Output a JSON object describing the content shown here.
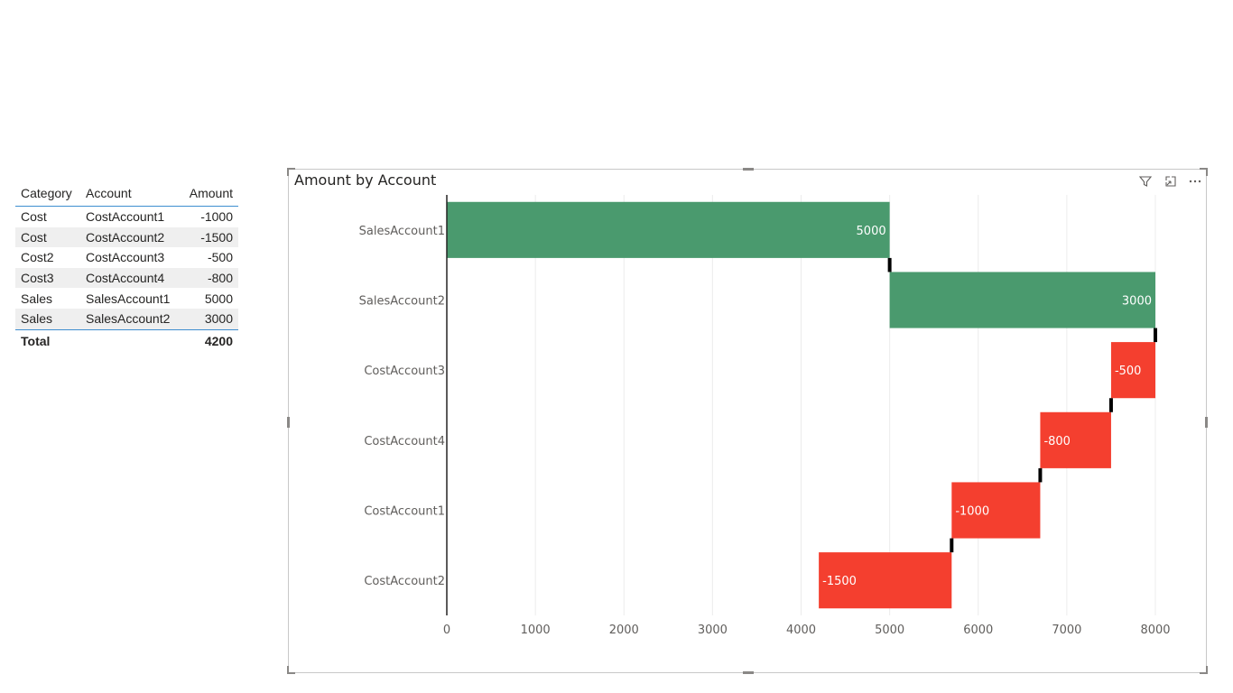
{
  "table": {
    "headers": [
      "Category",
      "Account",
      "Amount"
    ],
    "rows": [
      [
        "Cost",
        "CostAccount1",
        "-1000"
      ],
      [
        "Cost",
        "CostAccount2",
        "-1500"
      ],
      [
        "Cost2",
        "CostAccount3",
        "-500"
      ],
      [
        "Cost3",
        "CostAccount4",
        "-800"
      ],
      [
        "Sales",
        "SalesAccount1",
        "5000"
      ],
      [
        "Sales",
        "SalesAccount2",
        "3000"
      ]
    ],
    "total_label": "Total",
    "total_value": "4200"
  },
  "visual_header": {
    "filter_icon": "filter-icon",
    "focus_icon": "focus-mode-icon",
    "more_icon": "more-options-icon"
  },
  "chart_data": {
    "type": "bar",
    "subtype": "waterfall-horizontal",
    "title": "Amount by Account",
    "categories": [
      "SalesAccount1",
      "SalesAccount2",
      "CostAccount3",
      "CostAccount4",
      "CostAccount1",
      "CostAccount2"
    ],
    "values": [
      5000,
      3000,
      -500,
      -800,
      -1000,
      -1500
    ],
    "data_labels": [
      "5000",
      "3000",
      "-500",
      "-800",
      "-1000",
      "-1500"
    ],
    "x_ticks": [
      "0",
      "1000",
      "2000",
      "3000",
      "4000",
      "5000",
      "6000",
      "7000",
      "8000"
    ],
    "xlim": [
      0,
      8000
    ],
    "grid": true,
    "colors": {
      "increase": "#4a9a6e",
      "decrease": "#f43f2f",
      "connector": "#000000",
      "grid": "#ececec",
      "axis": "#252423"
    }
  }
}
